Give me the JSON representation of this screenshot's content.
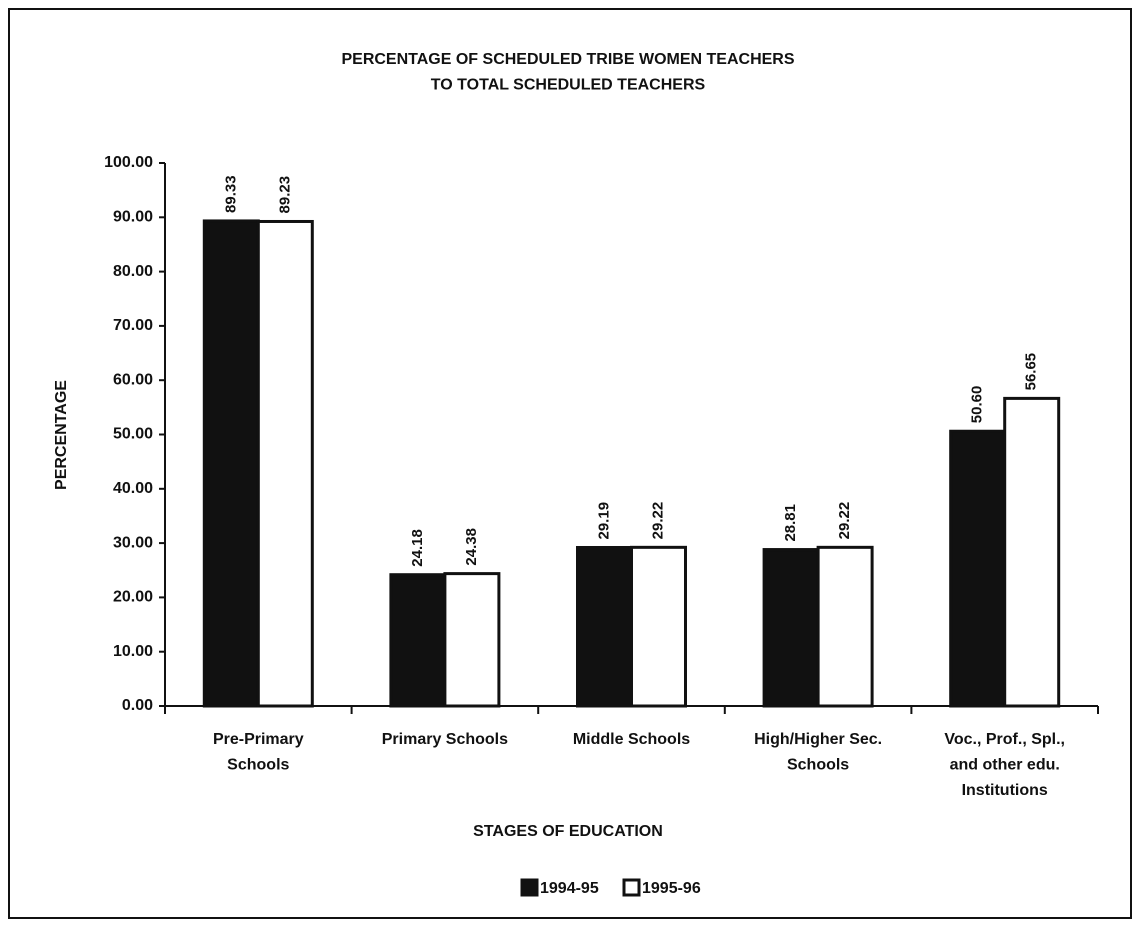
{
  "chart_data": {
    "type": "bar",
    "title": "PERCENTAGE OF SCHEDULED TRIBE WOMEN TEACHERS\nTO TOTAL SCHEDULED TEACHERS",
    "x_label": "STAGES OF EDUCATION",
    "y_label": "PERCENTAGE",
    "categories": [
      "Pre-Primary\nSchools",
      "Primary Schools",
      "Middle Schools",
      "High/Higher Sec.\nSchools",
      "Voc., Prof., Spl.,\nand other edu.\nInstitutions"
    ],
    "series": [
      {
        "name": "1994-95",
        "color": "#111111",
        "values": [
          89.33,
          24.18,
          29.19,
          28.81,
          50.6
        ],
        "value_labels": [
          "89.33",
          "24.18",
          "29.19",
          "28.81",
          "50.60"
        ]
      },
      {
        "name": "1995-96",
        "color": "#ffffff",
        "values": [
          89.23,
          24.38,
          29.22,
          29.22,
          56.65
        ],
        "value_labels": [
          "89.23",
          "24.38",
          "29.22",
          "29.22",
          "56.65"
        ]
      }
    ],
    "ylim": [
      0,
      100
    ],
    "yticks": [
      {
        "value": 0,
        "label": "0.00"
      },
      {
        "value": 10,
        "label": "10.00"
      },
      {
        "value": 20,
        "label": "20.00"
      },
      {
        "value": 30,
        "label": "30.00"
      },
      {
        "value": 40,
        "label": "40.00"
      },
      {
        "value": 50,
        "label": "50.00"
      },
      {
        "value": 60,
        "label": "60.00"
      },
      {
        "value": 70,
        "label": "70.00"
      },
      {
        "value": 80,
        "label": "80.00"
      },
      {
        "value": 90,
        "label": "90.00"
      },
      {
        "value": 100,
        "label": "100.00"
      }
    ],
    "grid": false,
    "legend": "bottom"
  }
}
